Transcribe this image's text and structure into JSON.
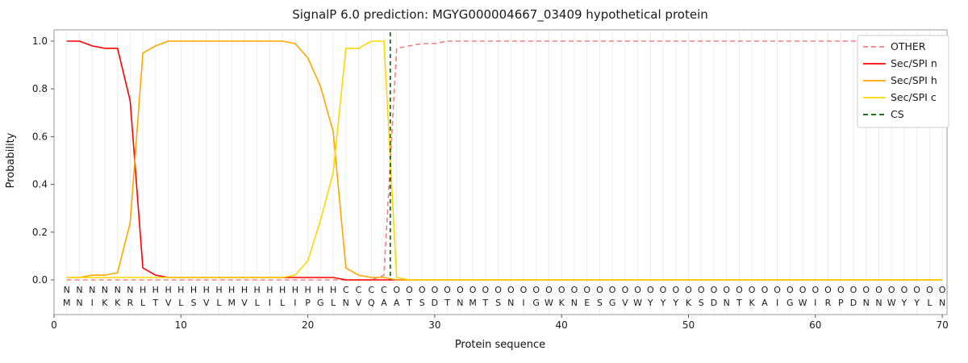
{
  "chart_data": {
    "type": "line",
    "title": "SignalP 6.0 prediction: MGYG000004667_03409 hypothetical protein",
    "xlabel": "Protein sequence",
    "ylabel": "Probability",
    "x_ticks": [
      0,
      10,
      20,
      30,
      40,
      50,
      60,
      70
    ],
    "y_ticks": [
      "0.0",
      "0.2",
      "0.4",
      "0.6",
      "0.8",
      "1.0"
    ],
    "xlim": [
      0,
      70.5
    ],
    "ylim": [
      0,
      1.05
    ],
    "grid": "light vertical gridline at every residue position",
    "legend_position": "upper right",
    "x_positions": "residues 1 to 70",
    "series": [
      {
        "name": "OTHER",
        "color": "#f08080",
        "style": "dashed",
        "values": [
          0,
          0,
          0,
          0,
          0,
          0,
          0,
          0,
          0,
          0,
          0,
          0,
          0,
          0,
          0,
          0,
          0,
          0,
          0,
          0,
          0,
          0,
          0,
          0,
          0,
          0.02,
          0.97,
          0.98,
          0.99,
          0.99,
          1.0,
          1.0,
          1.0,
          1.0,
          1.0,
          1.0,
          1.0,
          1.0,
          1.0,
          1.0,
          1.0,
          1.0,
          1.0,
          1.0,
          1.0,
          1.0,
          1.0,
          1.0,
          1.0,
          1.0,
          1.0,
          1.0,
          1.0,
          1.0,
          1.0,
          1.0,
          1.0,
          1.0,
          1.0,
          1.0,
          1.0,
          1.0,
          1.0,
          1.0,
          1.0,
          1.0,
          1.0,
          1.0,
          1.0,
          1.0
        ]
      },
      {
        "name": "Sec/SPI n",
        "color": "#ff0000",
        "style": "solid",
        "values": [
          1.0,
          1.0,
          0.98,
          0.97,
          0.97,
          0.75,
          0.05,
          0.02,
          0.01,
          0.01,
          0.01,
          0.01,
          0.01,
          0.01,
          0.01,
          0.01,
          0.01,
          0.01,
          0.01,
          0.01,
          0.01,
          0.01,
          0,
          0,
          0,
          0,
          0,
          0,
          0,
          0,
          0,
          0,
          0,
          0,
          0,
          0,
          0,
          0,
          0,
          0,
          0,
          0,
          0,
          0,
          0,
          0,
          0,
          0,
          0,
          0,
          0,
          0,
          0,
          0,
          0,
          0,
          0,
          0,
          0,
          0,
          0,
          0,
          0,
          0,
          0,
          0,
          0,
          0,
          0,
          0
        ]
      },
      {
        "name": "Sec/SPI h",
        "color": "#ffa500",
        "style": "solid",
        "values": [
          0.01,
          0.01,
          0.02,
          0.02,
          0.03,
          0.24,
          0.95,
          0.98,
          1.0,
          1.0,
          1.0,
          1.0,
          1.0,
          1.0,
          1.0,
          1.0,
          1.0,
          1.0,
          0.99,
          0.93,
          0.81,
          0.62,
          0.05,
          0.02,
          0.01,
          0.01,
          0,
          0,
          0,
          0,
          0,
          0,
          0,
          0,
          0,
          0,
          0,
          0,
          0,
          0,
          0,
          0,
          0,
          0,
          0,
          0,
          0,
          0,
          0,
          0,
          0,
          0,
          0,
          0,
          0,
          0,
          0,
          0,
          0,
          0,
          0,
          0,
          0,
          0,
          0,
          0,
          0,
          0,
          0,
          0
        ]
      },
      {
        "name": "Sec/SPI c",
        "color": "#ffd700",
        "style": "solid",
        "values": [
          0.01,
          0.01,
          0.01,
          0.01,
          0.01,
          0.01,
          0.01,
          0.01,
          0.01,
          0.01,
          0.01,
          0.01,
          0.01,
          0.01,
          0.01,
          0.01,
          0.01,
          0.01,
          0.02,
          0.08,
          0.25,
          0.45,
          0.97,
          0.97,
          1.0,
          1.0,
          0.01,
          0,
          0,
          0,
          0,
          0,
          0,
          0,
          0,
          0,
          0,
          0,
          0,
          0,
          0,
          0,
          0,
          0,
          0,
          0,
          0,
          0,
          0,
          0,
          0,
          0,
          0,
          0,
          0,
          0,
          0,
          0,
          0,
          0,
          0,
          0,
          0,
          0,
          0,
          0,
          0,
          0,
          0,
          0
        ]
      }
    ],
    "cs_marker": {
      "name": "CS",
      "color": "#006400",
      "style": "dashed",
      "position": 26.5
    },
    "legend_labels": [
      "OTHER",
      "Sec/SPI n",
      "Sec/SPI h",
      "Sec/SPI c",
      "CS"
    ],
    "sequence": "MNIKKRLTVLSVLMVLILIPGLNVQAATSDTNMTSNIGWKNESGVWYYYKSDNTKAIGWIRPDNNWYYLN",
    "regions": [
      {
        "letter": "N",
        "from": 1,
        "to": 6,
        "color": "#ff0000"
      },
      {
        "letter": "H",
        "from": 7,
        "to": 22,
        "color": "#ffa500"
      },
      {
        "letter": "C",
        "from": 23,
        "to": 26,
        "color": "#ffd700"
      },
      {
        "letter": "O",
        "from": 27,
        "to": 70,
        "color": "#8c8c8c"
      }
    ]
  }
}
